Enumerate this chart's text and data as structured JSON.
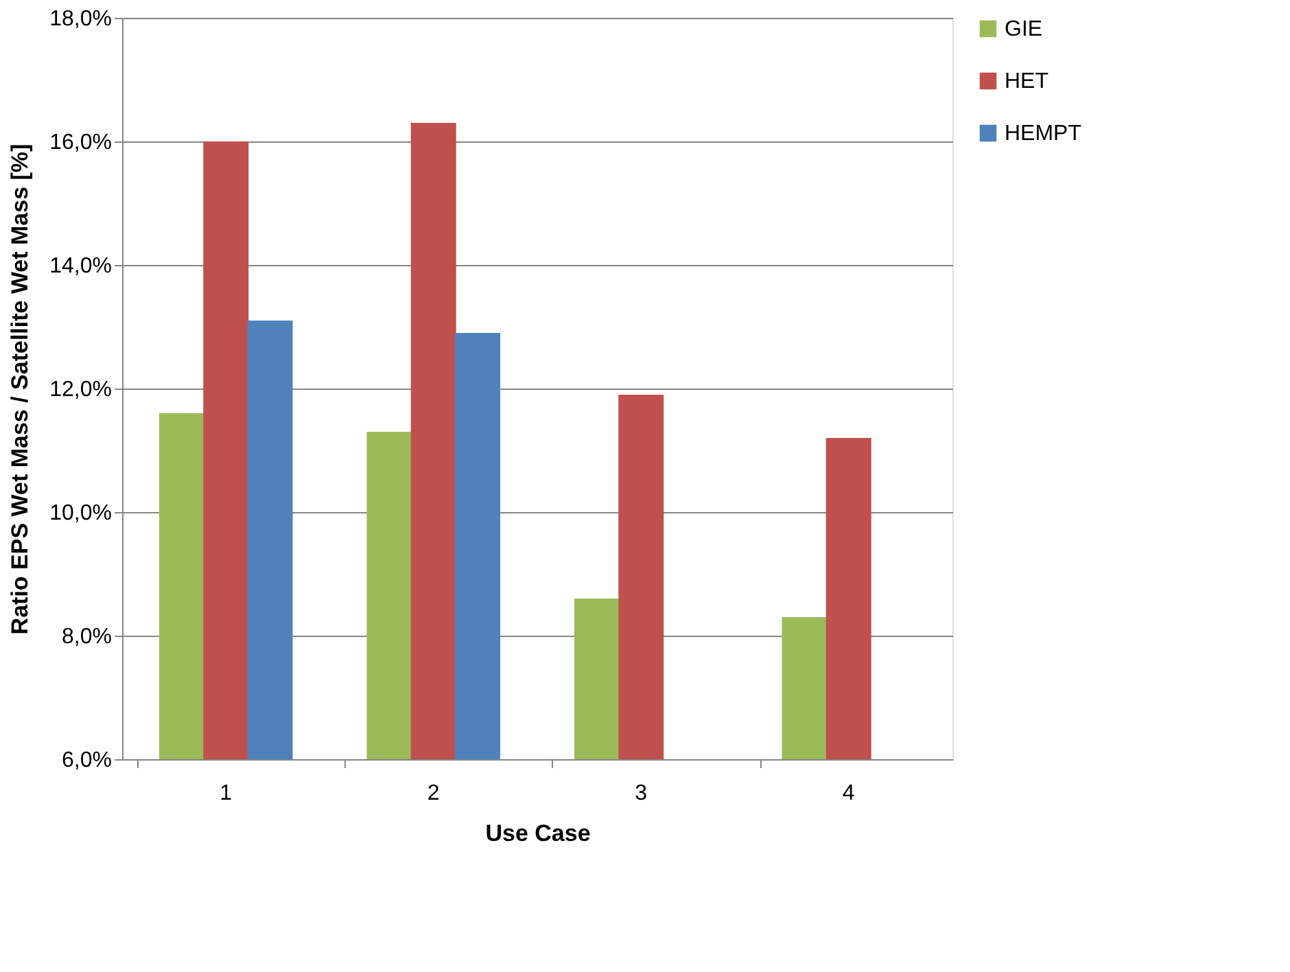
{
  "chart_data": {
    "type": "bar",
    "xlabel": "Use Case",
    "ylabel": "Ratio EPS Wet Mass / Satellite Wet Mass [%]",
    "categories": [
      "1",
      "2",
      "3",
      "4"
    ],
    "series": [
      {
        "name": "GIE",
        "color": "#9bbb59",
        "values": [
          11.6,
          11.3,
          8.6,
          8.3
        ]
      },
      {
        "name": "HET",
        "color": "#c0504d",
        "values": [
          16.0,
          16.3,
          11.9,
          11.2
        ]
      },
      {
        "name": "HEMPT",
        "color": "#4f81bd",
        "values": [
          13.1,
          12.9,
          null,
          null
        ]
      }
    ],
    "ylim": [
      6,
      18
    ],
    "yticks": [
      {
        "value": 6,
        "label": "6,0%"
      },
      {
        "value": 8,
        "label": "8,0%"
      },
      {
        "value": 10,
        "label": "10,0%"
      },
      {
        "value": 12,
        "label": "12,0%"
      },
      {
        "value": 14,
        "label": "14,0%"
      },
      {
        "value": 16,
        "label": "16,0%"
      },
      {
        "value": 18,
        "label": "18,0%"
      }
    ],
    "grid": "y",
    "legend": "right"
  }
}
